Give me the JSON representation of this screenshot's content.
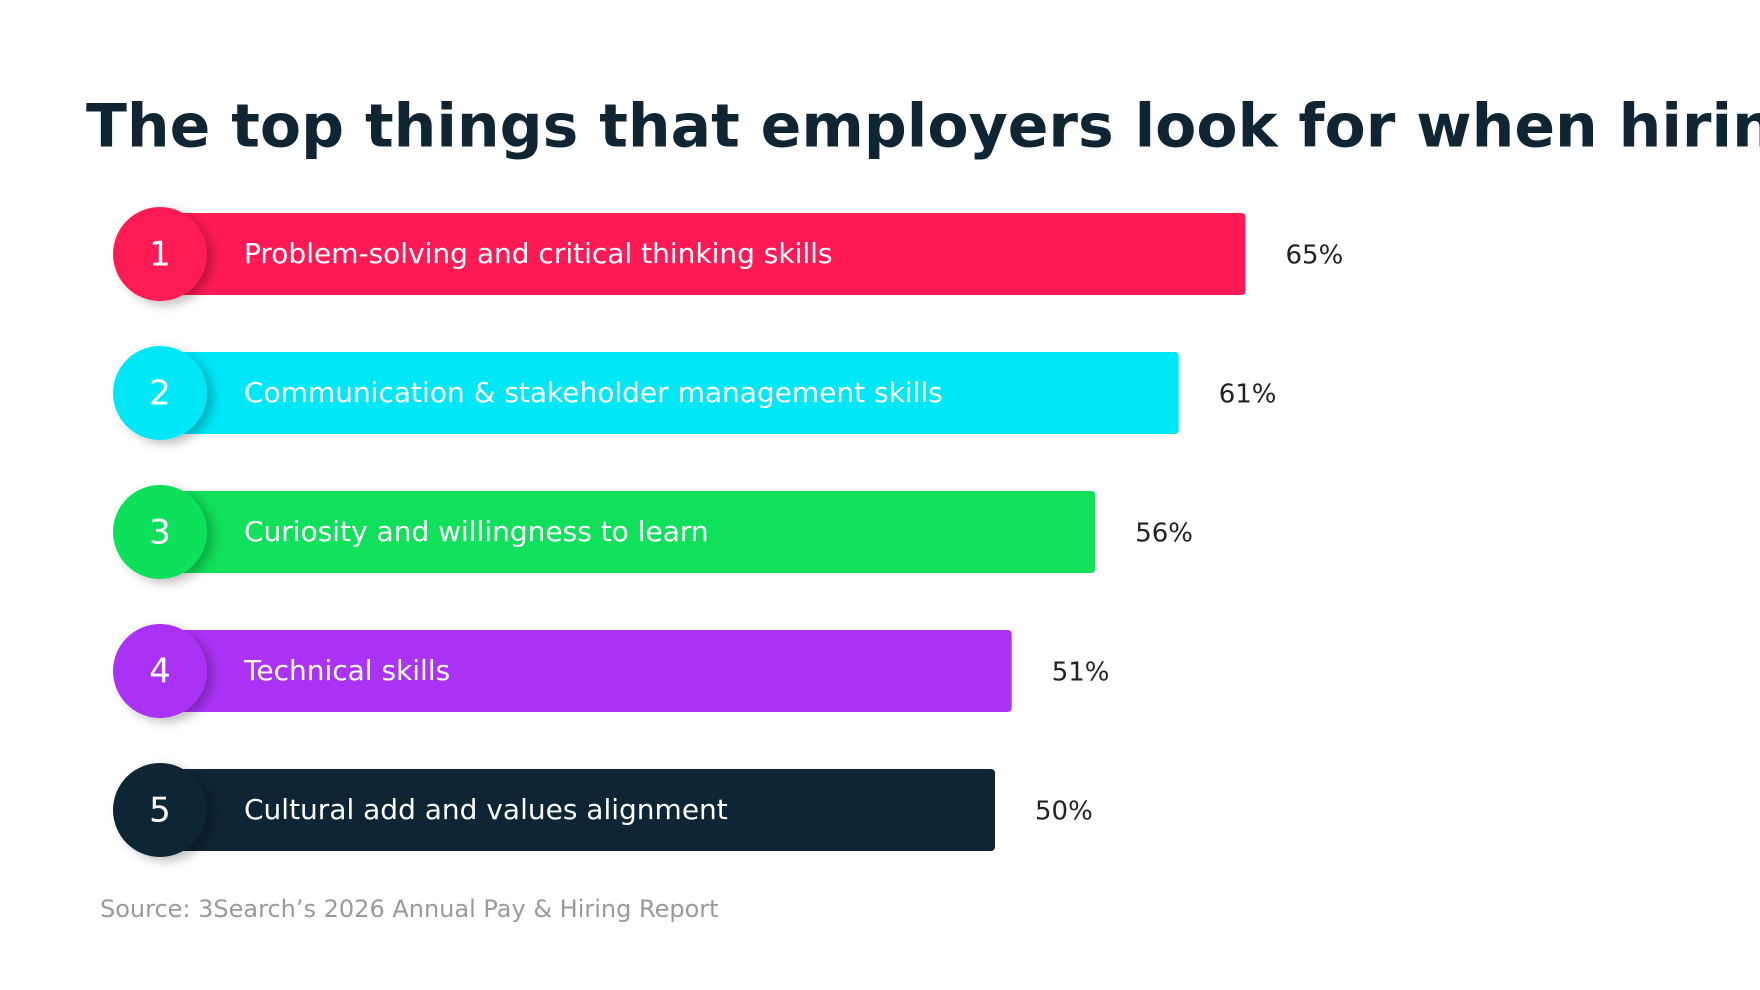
{
  "chart_data": {
    "type": "bar",
    "orientation": "horizontal",
    "title": "The top things that employers look for when hiring:",
    "categories": [
      "Problem-solving and critical thinking skills",
      "Communication & stakeholder management skills",
      "Curiosity and willingness to learn",
      "Technical skills",
      "Cultural add and values alignment"
    ],
    "ranks": [
      "1",
      "2",
      "3",
      "4",
      "5"
    ],
    "values": [
      65,
      61,
      56,
      51,
      50
    ],
    "value_labels": [
      "65%",
      "61%",
      "56%",
      "51%",
      "50%"
    ],
    "colors": [
      "#ff1a55",
      "#00e8f8",
      "#10e05a",
      "#aa33f5",
      "#0d2535"
    ],
    "source": "Source: 3Search’s 2026 Annual Pay & Hiring Report"
  }
}
